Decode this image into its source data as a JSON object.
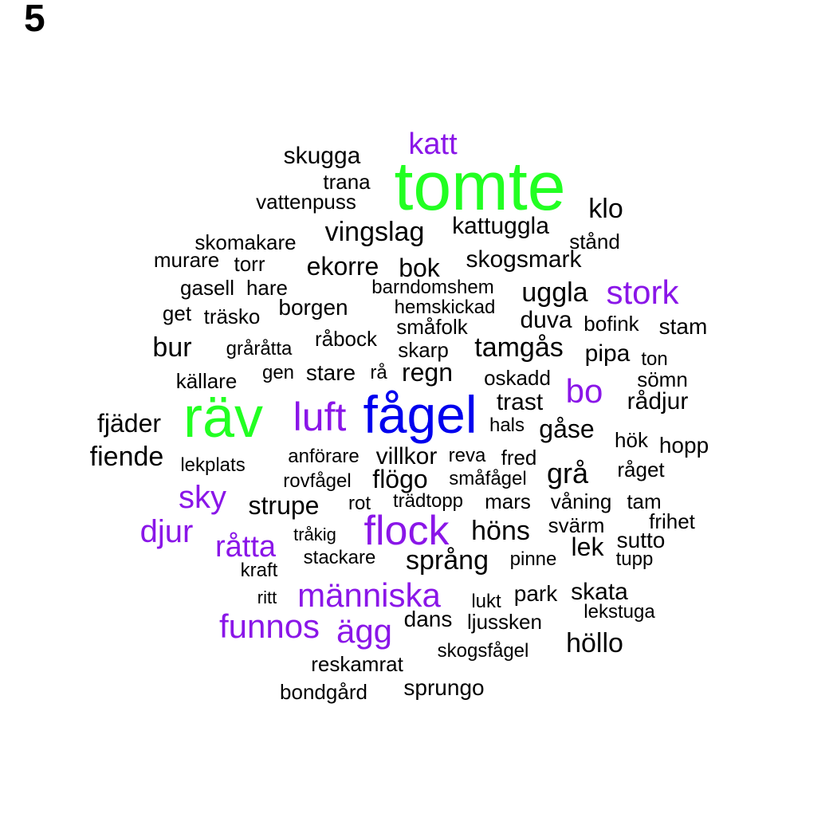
{
  "panel_label": "5",
  "palette": {
    "green": "#22ff22",
    "blue": "#0000ee",
    "purple": "#8a16e8",
    "black": "#000000"
  },
  "words": [
    {
      "text": "tomte",
      "color": "green"
    },
    {
      "text": "räv",
      "color": "green"
    },
    {
      "text": "fågel",
      "color": "blue"
    },
    {
      "text": "katt",
      "color": "purple"
    },
    {
      "text": "stork",
      "color": "purple"
    },
    {
      "text": "bo",
      "color": "purple"
    },
    {
      "text": "luft",
      "color": "purple"
    },
    {
      "text": "sky",
      "color": "purple"
    },
    {
      "text": "djur",
      "color": "purple"
    },
    {
      "text": "råtta",
      "color": "purple"
    },
    {
      "text": "flock",
      "color": "purple"
    },
    {
      "text": "människa",
      "color": "purple"
    },
    {
      "text": "funnos",
      "color": "purple"
    },
    {
      "text": "ägg",
      "color": "purple"
    },
    {
      "text": "skugga",
      "color": "black"
    },
    {
      "text": "trana",
      "color": "black"
    },
    {
      "text": "vattenpuss",
      "color": "black"
    },
    {
      "text": "klo",
      "color": "black"
    },
    {
      "text": "vingslag",
      "color": "black"
    },
    {
      "text": "kattuggla",
      "color": "black"
    },
    {
      "text": "stånd",
      "color": "black"
    },
    {
      "text": "skomakare",
      "color": "black"
    },
    {
      "text": "murare",
      "color": "black"
    },
    {
      "text": "torr",
      "color": "black"
    },
    {
      "text": "ekorre",
      "color": "black"
    },
    {
      "text": "bok",
      "color": "black"
    },
    {
      "text": "skogsmark",
      "color": "black"
    },
    {
      "text": "gasell",
      "color": "black"
    },
    {
      "text": "hare",
      "color": "black"
    },
    {
      "text": "barndomshem",
      "color": "black"
    },
    {
      "text": "uggla",
      "color": "black"
    },
    {
      "text": "get",
      "color": "black"
    },
    {
      "text": "träsko",
      "color": "black"
    },
    {
      "text": "borgen",
      "color": "black"
    },
    {
      "text": "hemskickad",
      "color": "black"
    },
    {
      "text": "småfolk",
      "color": "black"
    },
    {
      "text": "duva",
      "color": "black"
    },
    {
      "text": "bofink",
      "color": "black"
    },
    {
      "text": "stam",
      "color": "black"
    },
    {
      "text": "bur",
      "color": "black"
    },
    {
      "text": "gråråtta",
      "color": "black"
    },
    {
      "text": "råbock",
      "color": "black"
    },
    {
      "text": "skarp",
      "color": "black"
    },
    {
      "text": "tamgås",
      "color": "black"
    },
    {
      "text": "pipa",
      "color": "black"
    },
    {
      "text": "ton",
      "color": "black"
    },
    {
      "text": "källare",
      "color": "black"
    },
    {
      "text": "gen",
      "color": "black"
    },
    {
      "text": "stare",
      "color": "black"
    },
    {
      "text": "rå",
      "color": "black"
    },
    {
      "text": "regn",
      "color": "black"
    },
    {
      "text": "oskadd",
      "color": "black"
    },
    {
      "text": "sömn",
      "color": "black"
    },
    {
      "text": "trast",
      "color": "black"
    },
    {
      "text": "rådjur",
      "color": "black"
    },
    {
      "text": "fjäder",
      "color": "black"
    },
    {
      "text": "hals",
      "color": "black"
    },
    {
      "text": "gåse",
      "color": "black"
    },
    {
      "text": "hök",
      "color": "black"
    },
    {
      "text": "hopp",
      "color": "black"
    },
    {
      "text": "fiende",
      "color": "black"
    },
    {
      "text": "lekplats",
      "color": "black"
    },
    {
      "text": "anförare",
      "color": "black"
    },
    {
      "text": "villkor",
      "color": "black"
    },
    {
      "text": "reva",
      "color": "black"
    },
    {
      "text": "fred",
      "color": "black"
    },
    {
      "text": "grå",
      "color": "black"
    },
    {
      "text": "råget",
      "color": "black"
    },
    {
      "text": "rovfågel",
      "color": "black"
    },
    {
      "text": "flögo",
      "color": "black"
    },
    {
      "text": "småfågel",
      "color": "black"
    },
    {
      "text": "strupe",
      "color": "black"
    },
    {
      "text": "rot",
      "color": "black"
    },
    {
      "text": "trädtopp",
      "color": "black"
    },
    {
      "text": "mars",
      "color": "black"
    },
    {
      "text": "våning",
      "color": "black"
    },
    {
      "text": "tam",
      "color": "black"
    },
    {
      "text": "frihet",
      "color": "black"
    },
    {
      "text": "tråkig",
      "color": "black"
    },
    {
      "text": "höns",
      "color": "black"
    },
    {
      "text": "svärm",
      "color": "black"
    },
    {
      "text": "sutto",
      "color": "black"
    },
    {
      "text": "lek",
      "color": "black"
    },
    {
      "text": "stackare",
      "color": "black"
    },
    {
      "text": "pinne",
      "color": "black"
    },
    {
      "text": "tupp",
      "color": "black"
    },
    {
      "text": "språng",
      "color": "black"
    },
    {
      "text": "kraft",
      "color": "black"
    },
    {
      "text": "ritt",
      "color": "black"
    },
    {
      "text": "lukt",
      "color": "black"
    },
    {
      "text": "park",
      "color": "black"
    },
    {
      "text": "skata",
      "color": "black"
    },
    {
      "text": "lekstuga",
      "color": "black"
    },
    {
      "text": "dans",
      "color": "black"
    },
    {
      "text": "ljussken",
      "color": "black"
    },
    {
      "text": "höllo",
      "color": "black"
    },
    {
      "text": "skogsfågel",
      "color": "black"
    },
    {
      "text": "reskamrat",
      "color": "black"
    },
    {
      "text": "bondgård",
      "color": "black"
    },
    {
      "text": "sprungo",
      "color": "black"
    }
  ]
}
